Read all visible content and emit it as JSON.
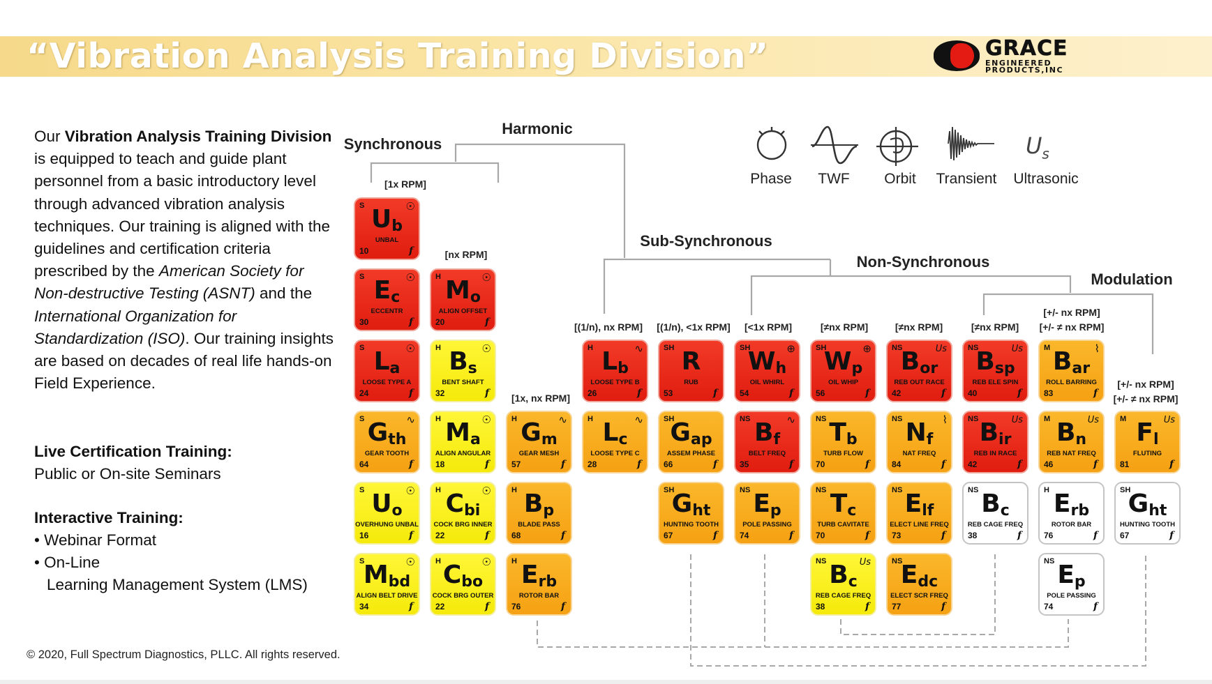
{
  "header": {
    "title": "“Vibration Analysis Training Division”",
    "logo": {
      "name": "GRACE",
      "sub1": "ENGINEERED",
      "sub2": "PRODUCTS,INC",
      "colors": {
        "mark": "#111111",
        "accent": "#e31b12"
      }
    },
    "banner_color": "#f6d98a"
  },
  "intro": {
    "t1": "Our ",
    "t2": "Vibration Analysis Training Division",
    "t3": " is equipped to teach and guide plant personnel  from a basic introductory level through advanced vibration analysis techniques.  Our training is aligned with the guidelines and certification criteria prescribed by the ",
    "t4": "American Society for Non-destructive Testing (ASNT)",
    "t5": " and the ",
    "t6": "International Organization for Standardization (ISO)",
    "t7": ".  Our training insights are based on decades of real life hands-on Field Experience."
  },
  "live": {
    "title": "Live Certification Training:",
    "line": "Public or On-site Seminars"
  },
  "interactive": {
    "title": "Interactive Training:",
    "items": [
      "• Webinar Format",
      "• On-Line",
      "  Learning Management System (LMS)"
    ]
  },
  "copyright": "© 2020, Full Spectrum Diagnostics, PLLC. All rights reserved.",
  "legend": {
    "phase": "Phase",
    "twf": "TWF",
    "orbit": "Orbit",
    "transient": "Transient",
    "ultrasonic": "Ultrasonic",
    "ultrasonic_symbol": "Us"
  },
  "categories": {
    "synchronous": "Synchronous",
    "harmonic": "Harmonic",
    "sub_synchronous": "Sub-Synchronous",
    "non_synchronous": "Non-Synchronous",
    "modulation": "Modulation"
  },
  "column_labels": {
    "c1": "[1x RPM]",
    "c2": "[nx RPM]",
    "c3": "[1x, nx RPM]",
    "c4": "[(1/n), nx RPM]",
    "c5": "[(1/n), <1x RPM]",
    "c6": "[<1x RPM]",
    "c7": "[≠nx RPM]",
    "c8": "[≠nx RPM]",
    "c9": "[≠nx RPM]",
    "c10a": "[+/- nx RPM]",
    "c10b": "[+/- ≠ nx RPM]",
    "c11a": "[+/-  nx RPM]",
    "c11b": "[+/- ≠ nx RPM]"
  },
  "tile_colors": {
    "red": "#e8281a",
    "orange": "#f7a81a",
    "yellow": "#fbf020",
    "white": "#ffffff"
  },
  "tiles": [
    {
      "sym": "U",
      "sub": "b",
      "sup": "S",
      "name": "UNBAL",
      "num": "10",
      "color": "red",
      "icon": "phase"
    },
    {
      "sym": "E",
      "sub": "c",
      "sup": "S",
      "name": "ECCENTR",
      "num": "30",
      "color": "red",
      "icon": "phase"
    },
    {
      "sym": "L",
      "sub": "a",
      "sup": "S",
      "name": "LOOSE TYPE A",
      "num": "24",
      "color": "red",
      "icon": "phase"
    },
    {
      "sym": "G",
      "sub": "th",
      "sup": "S",
      "name": "GEAR TOOTH",
      "num": "64",
      "color": "orange",
      "icon": "twf"
    },
    {
      "sym": "U",
      "sub": "o",
      "sup": "S",
      "name": "OVERHUNG UNBAL",
      "num": "16",
      "color": "yellow",
      "icon": "phase"
    },
    {
      "sym": "M",
      "sub": "bd",
      "sup": "S",
      "name": "ALIGN BELT DRIVE",
      "num": "34",
      "color": "yellow",
      "icon": "phase"
    },
    {
      "sym": "M",
      "sub": "o",
      "sup": "H",
      "name": "ALIGN OFFSET",
      "num": "20",
      "color": "red",
      "icon": "phase"
    },
    {
      "sym": "B",
      "sub": "s",
      "sup": "H",
      "name": "BENT SHAFT",
      "num": "32",
      "color": "yellow",
      "icon": "phase"
    },
    {
      "sym": "M",
      "sub": "a",
      "sup": "H",
      "name": "ALIGN ANGULAR",
      "num": "18",
      "color": "yellow",
      "icon": "phase"
    },
    {
      "sym": "C",
      "sub": "bi",
      "sup": "H",
      "name": "COCK BRG INNER",
      "num": "22",
      "color": "yellow",
      "icon": "phase"
    },
    {
      "sym": "C",
      "sub": "bo",
      "sup": "H",
      "name": "COCK BRG OUTER",
      "num": "22",
      "color": "yellow",
      "icon": "phase"
    },
    {
      "sym": "G",
      "sub": "m",
      "sup": "H",
      "name": "GEAR MESH",
      "num": "57",
      "color": "orange",
      "icon": "twf"
    },
    {
      "sym": "B",
      "sub": "p",
      "sup": "H",
      "name": "BLADE PASS",
      "num": "68",
      "color": "orange",
      "icon": ""
    },
    {
      "sym": "E",
      "sub": "rb",
      "sup": "H",
      "name": "ROTOR BAR",
      "num": "76",
      "color": "orange",
      "icon": ""
    },
    {
      "sym": "L",
      "sub": "b",
      "sup": "H",
      "name": "LOOSE TYPE B",
      "num": "26",
      "color": "red",
      "icon": "twf"
    },
    {
      "sym": "L",
      "sub": "c",
      "sup": "H",
      "name": "LOOSE TYPE C",
      "num": "28",
      "color": "orange",
      "icon": "twf"
    },
    {
      "sym": "R",
      "sub": "",
      "sup": "SH",
      "name": "RUB",
      "num": "53",
      "color": "red",
      "icon": ""
    },
    {
      "sym": "G",
      "sub": "ap",
      "sup": "SH",
      "name": "ASSEM PHASE",
      "num": "66",
      "color": "orange",
      "icon": ""
    },
    {
      "sym": "G",
      "sub": "ht",
      "sup": "SH",
      "name": "HUNTING TOOTH",
      "num": "67",
      "color": "orange",
      "icon": ""
    },
    {
      "sym": "W",
      "sub": "h",
      "sup": "SH",
      "name": "OIL WHIRL",
      "num": "54",
      "color": "red",
      "icon": "orbit"
    },
    {
      "sym": "B",
      "sub": "f",
      "sup": "NS",
      "name": "BELT FREQ",
      "num": "35",
      "color": "red",
      "icon": "twf"
    },
    {
      "sym": "E",
      "sub": "p",
      "sup": "NS",
      "name": "POLE PASSING",
      "num": "74",
      "color": "orange",
      "icon": ""
    },
    {
      "sym": "W",
      "sub": "p",
      "sup": "SH",
      "name": "OIL WHIP",
      "num": "56",
      "color": "red",
      "icon": "orbit"
    },
    {
      "sym": "T",
      "sub": "b",
      "sup": "NS",
      "name": "TURB FLOW",
      "num": "70",
      "color": "orange",
      "icon": ""
    },
    {
      "sym": "T",
      "sub": "c",
      "sup": "NS",
      "name": "TURB CAVITATE",
      "num": "70",
      "color": "orange",
      "icon": ""
    },
    {
      "sym": "B",
      "sub": "c",
      "sup": "NS",
      "name": "REB CAGE FREQ",
      "num": "38",
      "color": "yellow",
      "icon": "us"
    },
    {
      "sym": "B",
      "sub": "or",
      "sup": "NS",
      "name": "REB OUT RACE",
      "num": "42",
      "color": "red",
      "icon": "us"
    },
    {
      "sym": "N",
      "sub": "f",
      "sup": "NS",
      "name": "NAT FREQ",
      "num": "84",
      "color": "orange",
      "icon": "transient"
    },
    {
      "sym": "E",
      "sub": "lf",
      "sup": "NS",
      "name": "ELECT LINE FREQ",
      "num": "73",
      "color": "orange",
      "icon": ""
    },
    {
      "sym": "E",
      "sub": "dc",
      "sup": "NS",
      "name": "ELECT SCR FREQ",
      "num": "77",
      "color": "orange",
      "icon": ""
    },
    {
      "sym": "B",
      "sub": "sp",
      "sup": "NS",
      "name": "REB ELE SPIN",
      "num": "40",
      "color": "red",
      "icon": "us"
    },
    {
      "sym": "B",
      "sub": "ir",
      "sup": "NS",
      "name": "REB IN RACE",
      "num": "42",
      "color": "red",
      "icon": "us"
    },
    {
      "sym": "B",
      "sub": "c",
      "sup": "NS",
      "name": "REB CAGE FREQ",
      "num": "38",
      "color": "white",
      "icon": ""
    },
    {
      "sym": "B",
      "sub": "ar",
      "sup": "M",
      "name": "ROLL BARRING",
      "num": "83",
      "color": "orange",
      "icon": "transient"
    },
    {
      "sym": "B",
      "sub": "n",
      "sup": "M",
      "name": "REB NAT FREQ",
      "num": "46",
      "color": "orange",
      "icon": "us"
    },
    {
      "sym": "E",
      "sub": "rb",
      "sup": "H",
      "name": "ROTOR BAR",
      "num": "76",
      "color": "white",
      "icon": ""
    },
    {
      "sym": "E",
      "sub": "p",
      "sup": "NS",
      "name": "POLE PASSING",
      "num": "74",
      "color": "white",
      "icon": ""
    },
    {
      "sym": "F",
      "sub": "l",
      "sup": "M",
      "name": "FLUTING",
      "num": "81",
      "color": "orange",
      "icon": "us"
    },
    {
      "sym": "G",
      "sub": "ht",
      "sup": "SH",
      "name": "HUNTING TOOTH",
      "num": "67",
      "color": "white",
      "icon": ""
    }
  ]
}
